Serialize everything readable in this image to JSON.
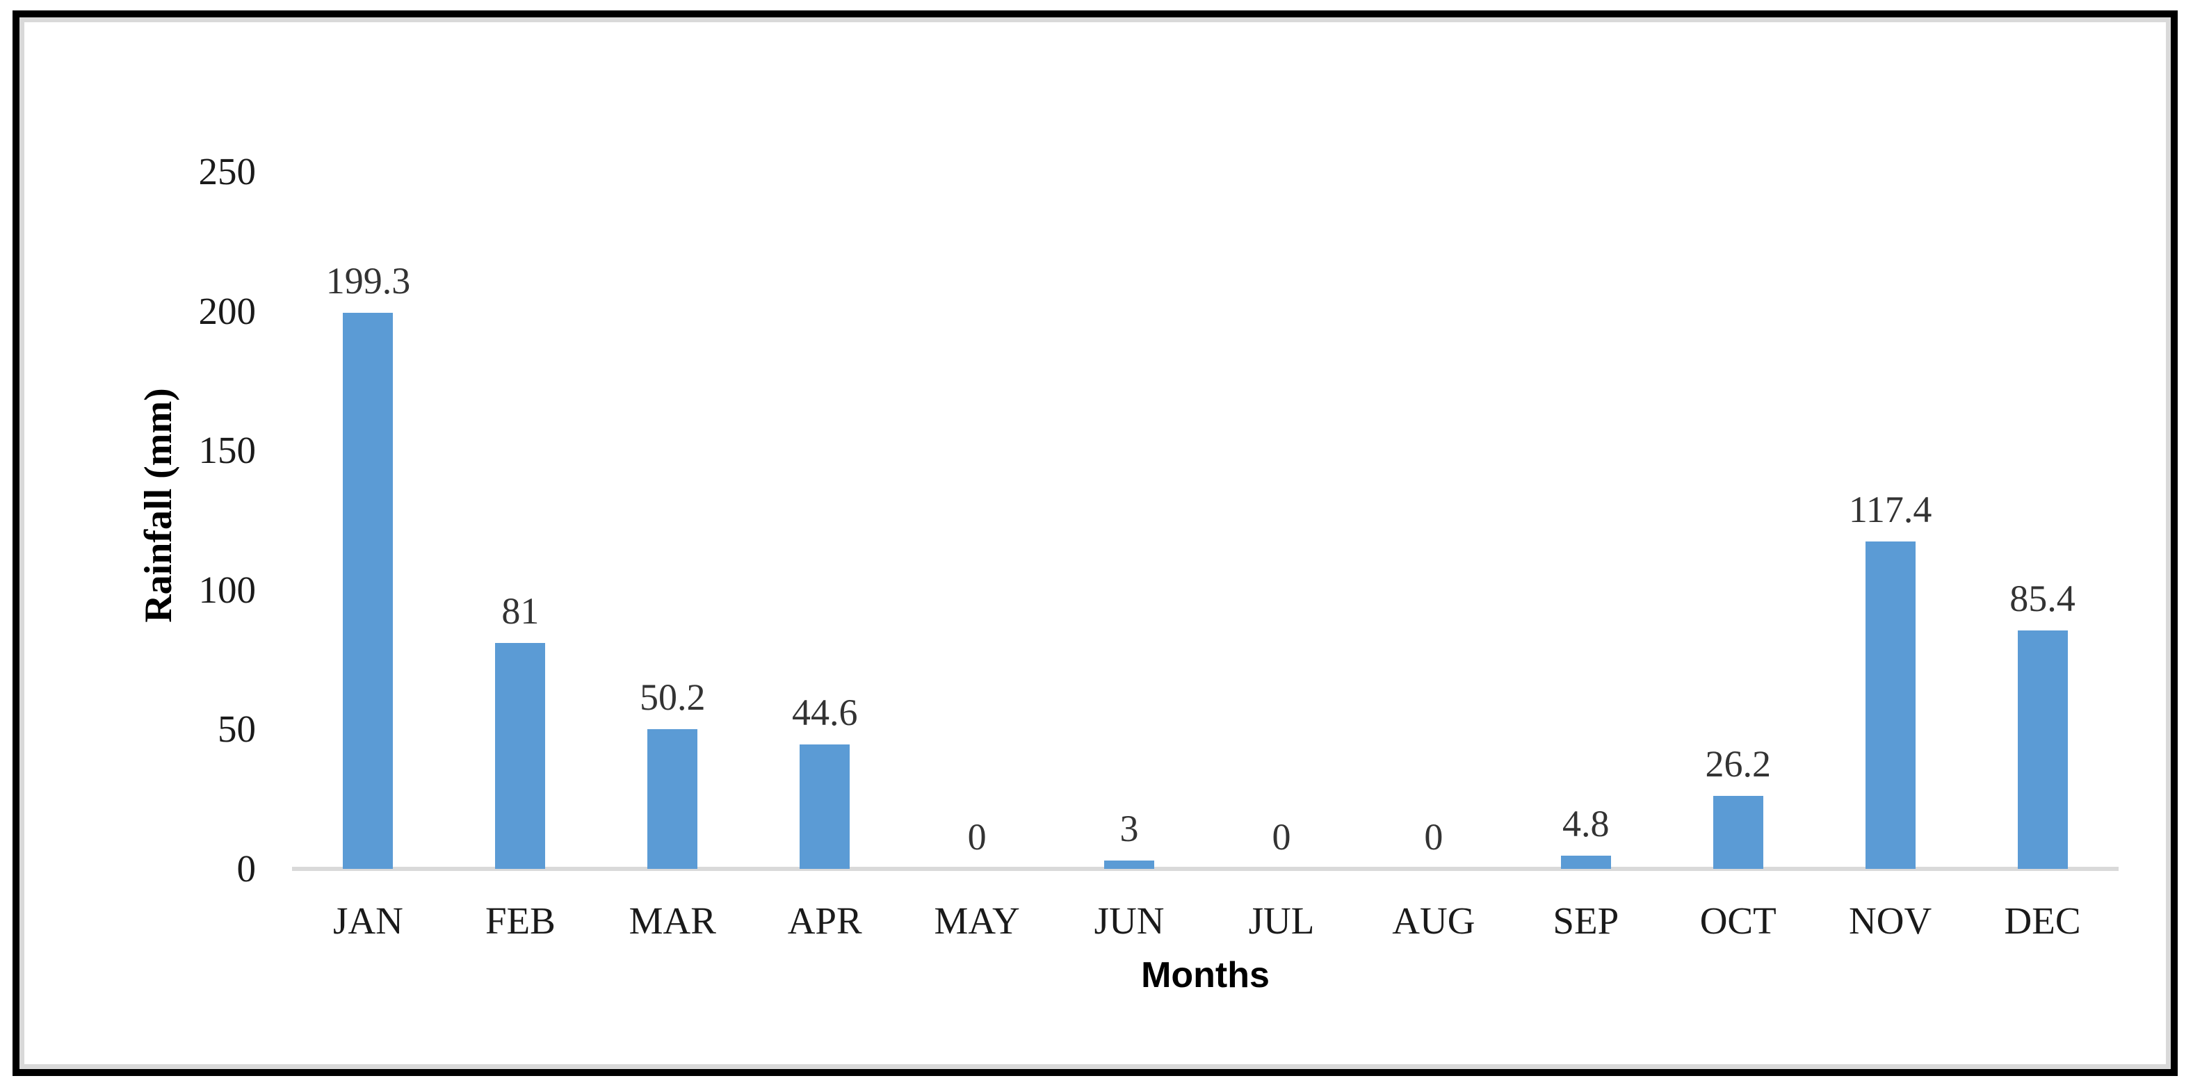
{
  "chart_data": {
    "type": "bar",
    "title": "",
    "categories": [
      "JAN",
      "FEB",
      "MAR",
      "APR",
      "MAY",
      "JUN",
      "JUL",
      "AUG",
      "SEP",
      "OCT",
      "NOV",
      "DEC"
    ],
    "values": [
      199.3,
      81,
      50.2,
      44.6,
      0,
      3,
      0,
      0,
      4.8,
      26.2,
      117.4,
      85.4
    ],
    "value_labels": [
      "199.3",
      "81",
      "50.2",
      "44.6",
      "0",
      "3",
      "0",
      "0",
      "4.8",
      "26.2",
      "117.4",
      "85.4"
    ],
    "xlabel": "Months",
    "ylabel": "Rainfall (mm)",
    "ylim": [
      0,
      250
    ],
    "yticks": [
      0,
      50,
      100,
      150,
      200,
      250
    ],
    "ytick_labels": [
      "0",
      "50",
      "100",
      "150",
      "200",
      "250"
    ],
    "grid": false,
    "legend": false,
    "colors": {
      "bar": "#5B9BD5",
      "axis_line": "#D9D9D9",
      "tick_text": "#1A1A1A",
      "data_label_text": "#333333",
      "axis_title_text": "#000000",
      "border": "#000000"
    }
  }
}
